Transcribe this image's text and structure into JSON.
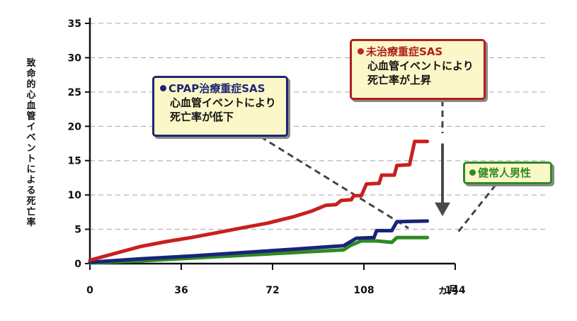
{
  "chart_data": {
    "type": "line",
    "title": "",
    "xlabel": "",
    "ylabel": "致命的心血管イベントによる死亡率",
    "xlim": [
      0,
      144
    ],
    "ylim": [
      0,
      35
    ],
    "x_ticks": [
      "0",
      "36",
      "72",
      "108",
      "144"
    ],
    "x_unit": "ヵ月",
    "y_ticks": [
      "0",
      "5",
      "10",
      "15",
      "20",
      "25",
      "30",
      "35"
    ],
    "grid": "horizontal dashed",
    "series": [
      {
        "name": "未治療重症SAS",
        "color": "#c8201e",
        "points": [
          [
            0,
            0.5
          ],
          [
            10,
            1.5
          ],
          [
            20,
            2.5
          ],
          [
            30,
            3.2
          ],
          [
            40,
            3.8
          ],
          [
            50,
            4.5
          ],
          [
            60,
            5.2
          ],
          [
            70,
            5.9
          ],
          [
            80,
            6.8
          ],
          [
            87,
            7.6
          ],
          [
            93,
            8.5
          ],
          [
            97,
            8.6
          ],
          [
            99,
            9.2
          ],
          [
            103,
            9.3
          ],
          [
            104,
            9.9
          ],
          [
            107,
            9.9
          ],
          [
            109,
            11.6
          ],
          [
            114,
            11.7
          ],
          [
            115,
            12.9
          ],
          [
            120,
            12.9
          ],
          [
            121,
            14.3
          ],
          [
            126,
            14.4
          ],
          [
            128,
            17.8
          ],
          [
            133,
            17.8
          ]
        ]
      },
      {
        "name": "CPAP治療重症SAS",
        "color": "#1a237a",
        "points": [
          [
            0,
            0.2
          ],
          [
            20,
            0.7
          ],
          [
            40,
            1.1
          ],
          [
            60,
            1.6
          ],
          [
            80,
            2.1
          ],
          [
            100,
            2.6
          ],
          [
            105,
            3.7
          ],
          [
            112,
            3.8
          ],
          [
            113,
            4.8
          ],
          [
            119,
            4.8
          ],
          [
            121,
            6.1
          ],
          [
            133,
            6.2
          ]
        ]
      },
      {
        "name": "健常人男性",
        "color": "#2e8a22",
        "points": [
          [
            0,
            0.1
          ],
          [
            20,
            0.4
          ],
          [
            40,
            0.8
          ],
          [
            60,
            1.2
          ],
          [
            80,
            1.6
          ],
          [
            100,
            2.0
          ],
          [
            103,
            2.7
          ],
          [
            107,
            3.3
          ],
          [
            113,
            3.3
          ],
          [
            119,
            3.1
          ],
          [
            121,
            3.8
          ],
          [
            133,
            3.8
          ]
        ]
      }
    ],
    "annotations": [
      {
        "id": "cpap",
        "marker_color": "#1a237a",
        "lines": [
          "CPAP治療重症SAS",
          "心血管イベントにより",
          "死亡率が低下"
        ]
      },
      {
        "id": "untreated",
        "marker_color": "#c8201e",
        "lines": [
          "未治療重症SAS",
          "心血管イベントにより",
          "死亡率が上昇"
        ]
      },
      {
        "id": "healthy",
        "marker_color": "#2e8a22",
        "lines": [
          "健常人男性"
        ]
      }
    ]
  }
}
